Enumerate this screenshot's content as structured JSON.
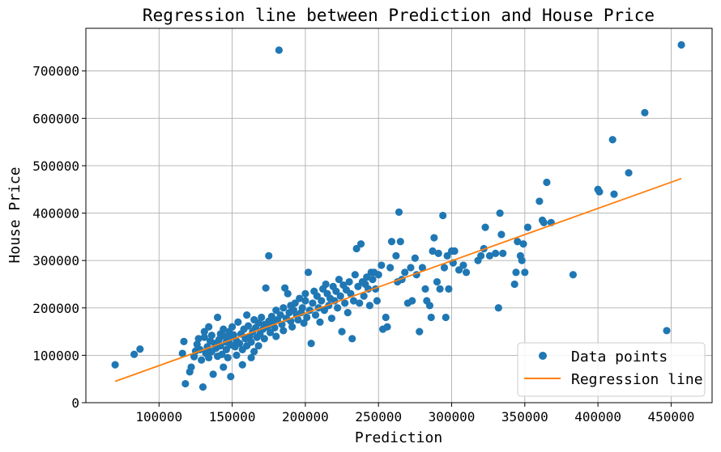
{
  "chart_data": {
    "type": "scatter",
    "title": "Regression line between Prediction and House Price",
    "xlabel": "Prediction",
    "ylabel": "House Price",
    "xlim": [
      50000,
      478000
    ],
    "ylim": [
      0,
      790000
    ],
    "xticks": [
      100000,
      150000,
      200000,
      250000,
      300000,
      350000,
      400000,
      450000
    ],
    "yticks": [
      0,
      100000,
      200000,
      300000,
      400000,
      500000,
      600000,
      700000
    ],
    "grid": true,
    "legend": {
      "placement": "lower-right",
      "entries": [
        "Data points",
        "Regression line"
      ]
    },
    "series": [
      {
        "name": "Data points",
        "kind": "scatter",
        "color": "#1f77b4",
        "points": [
          [
            70000,
            80000
          ],
          [
            83000,
            102000
          ],
          [
            87000,
            113000
          ],
          [
            116000,
            104000
          ],
          [
            117000,
            129000
          ],
          [
            118000,
            40000
          ],
          [
            121000,
            65000
          ],
          [
            122000,
            75000
          ],
          [
            124000,
            97000
          ],
          [
            125000,
            109000
          ],
          [
            126000,
            123000
          ],
          [
            127000,
            135000
          ],
          [
            128000,
            112000
          ],
          [
            129000,
            90000
          ],
          [
            130000,
            33000
          ],
          [
            131000,
            138000
          ],
          [
            131000,
            150000
          ],
          [
            132000,
            104000
          ],
          [
            133000,
            118000
          ],
          [
            134000,
            160000
          ],
          [
            134000,
            95000
          ],
          [
            135000,
            130000
          ],
          [
            136000,
            142000
          ],
          [
            136000,
            108000
          ],
          [
            137000,
            60000
          ],
          [
            138000,
            125000
          ],
          [
            139000,
            115000
          ],
          [
            140000,
            98000
          ],
          [
            140000,
            180000
          ],
          [
            141000,
            133000
          ],
          [
            142000,
            145000
          ],
          [
            142000,
            120000
          ],
          [
            143000,
            102000
          ],
          [
            144000,
            155000
          ],
          [
            144000,
            75000
          ],
          [
            145000,
            140000
          ],
          [
            146000,
            128000
          ],
          [
            146000,
            112000
          ],
          [
            147000,
            95000
          ],
          [
            148000,
            150000
          ],
          [
            148000,
            135000
          ],
          [
            149000,
            122000
          ],
          [
            149000,
            55000
          ],
          [
            150000,
            160000
          ],
          [
            151000,
            143000
          ],
          [
            152000,
            118000
          ],
          [
            153000,
            130000
          ],
          [
            153000,
            100000
          ],
          [
            154000,
            170000
          ],
          [
            155000,
            125000
          ],
          [
            156000,
            145000
          ],
          [
            157000,
            112000
          ],
          [
            157000,
            80000
          ],
          [
            158000,
            155000
          ],
          [
            159000,
            135000
          ],
          [
            160000,
            120000
          ],
          [
            160000,
            185000
          ],
          [
            161000,
            162000
          ],
          [
            162000,
            140000
          ],
          [
            163000,
            128000
          ],
          [
            163000,
            95000
          ],
          [
            164000,
            150000
          ],
          [
            165000,
            175000
          ],
          [
            165000,
            108000
          ],
          [
            166000,
            158000
          ],
          [
            167000,
            138000
          ],
          [
            168000,
            168000
          ],
          [
            168000,
            120000
          ],
          [
            169000,
            145000
          ],
          [
            170000,
            180000
          ],
          [
            171000,
            155000
          ],
          [
            172000,
            165000
          ],
          [
            172000,
            135000
          ],
          [
            173000,
            242000
          ],
          [
            174000,
            160000
          ],
          [
            175000,
            172000
          ],
          [
            175000,
            310000
          ],
          [
            176000,
            148000
          ],
          [
            177000,
            182000
          ],
          [
            178000,
            168000
          ],
          [
            179000,
            158000
          ],
          [
            180000,
            195000
          ],
          [
            180000,
            140000
          ],
          [
            181000,
            175000
          ],
          [
            182000,
            744000
          ],
          [
            183000,
            185000
          ],
          [
            184000,
            165000
          ],
          [
            185000,
            200000
          ],
          [
            185000,
            152000
          ],
          [
            186000,
            242000
          ],
          [
            187000,
            178000
          ],
          [
            188000,
            230000
          ],
          [
            189000,
            190000
          ],
          [
            190000,
            172000
          ],
          [
            190000,
            205000
          ],
          [
            191000,
            160000
          ],
          [
            192000,
            195000
          ],
          [
            193000,
            210000
          ],
          [
            194000,
            185000
          ],
          [
            195000,
            175000
          ],
          [
            196000,
            220000
          ],
          [
            197000,
            190000
          ],
          [
            198000,
            200000
          ],
          [
            199000,
            168000
          ],
          [
            200000,
            215000
          ],
          [
            200000,
            230000
          ],
          [
            201000,
            180000
          ],
          [
            202000,
            275000
          ],
          [
            203000,
            195000
          ],
          [
            204000,
            125000
          ],
          [
            205000,
            210000
          ],
          [
            206000,
            235000
          ],
          [
            207000,
            185000
          ],
          [
            208000,
            225000
          ],
          [
            209000,
            200000
          ],
          [
            210000,
            170000
          ],
          [
            211000,
            215000
          ],
          [
            212000,
            240000
          ],
          [
            213000,
            195000
          ],
          [
            214000,
            250000
          ],
          [
            215000,
            230000
          ],
          [
            216000,
            205000
          ],
          [
            217000,
            220000
          ],
          [
            218000,
            178000
          ],
          [
            219000,
            245000
          ],
          [
            220000,
            215000
          ],
          [
            221000,
            235000
          ],
          [
            222000,
            200000
          ],
          [
            223000,
            260000
          ],
          [
            224000,
            225000
          ],
          [
            225000,
            150000
          ],
          [
            226000,
            248000
          ],
          [
            227000,
            210000
          ],
          [
            228000,
            238000
          ],
          [
            229000,
            190000
          ],
          [
            230000,
            255000
          ],
          [
            231000,
            230000
          ],
          [
            232000,
            135000
          ],
          [
            233000,
            215000
          ],
          [
            234000,
            270000
          ],
          [
            235000,
            325000
          ],
          [
            236000,
            245000
          ],
          [
            237000,
            210000
          ],
          [
            238000,
            335000
          ],
          [
            239000,
            255000
          ],
          [
            240000,
            225000
          ],
          [
            241000,
            250000
          ],
          [
            242000,
            265000
          ],
          [
            243000,
            240000
          ],
          [
            244000,
            205000
          ],
          [
            245000,
            275000
          ],
          [
            246000,
            260000
          ],
          [
            247000,
            275000
          ],
          [
            248000,
            240000
          ],
          [
            249000,
            215000
          ],
          [
            250000,
            270000
          ],
          [
            252000,
            290000
          ],
          [
            253000,
            155000
          ],
          [
            255000,
            180000
          ],
          [
            256000,
            160000
          ],
          [
            258000,
            285000
          ],
          [
            259000,
            340000
          ],
          [
            262000,
            310000
          ],
          [
            263000,
            255000
          ],
          [
            264000,
            402000
          ],
          [
            265000,
            340000
          ],
          [
            266000,
            260000
          ],
          [
            268000,
            275000
          ],
          [
            270000,
            210000
          ],
          [
            272000,
            285000
          ],
          [
            273000,
            215000
          ],
          [
            275000,
            305000
          ],
          [
            276000,
            270000
          ],
          [
            278000,
            150000
          ],
          [
            280000,
            285000
          ],
          [
            282000,
            240000
          ],
          [
            283000,
            215000
          ],
          [
            285000,
            205000
          ],
          [
            286000,
            180000
          ],
          [
            287000,
            320000
          ],
          [
            288000,
            348000
          ],
          [
            290000,
            255000
          ],
          [
            291000,
            315000
          ],
          [
            292000,
            240000
          ],
          [
            294000,
            395000
          ],
          [
            295000,
            285000
          ],
          [
            296000,
            180000
          ],
          [
            297000,
            310000
          ],
          [
            298000,
            240000
          ],
          [
            300000,
            320000
          ],
          [
            301000,
            295000
          ],
          [
            302000,
            320000
          ],
          [
            305000,
            280000
          ],
          [
            308000,
            290000
          ],
          [
            310000,
            275000
          ],
          [
            318000,
            300000
          ],
          [
            320000,
            310000
          ],
          [
            322000,
            325000
          ],
          [
            323000,
            370000
          ],
          [
            326000,
            310000
          ],
          [
            330000,
            315000
          ],
          [
            332000,
            200000
          ],
          [
            333000,
            400000
          ],
          [
            334000,
            355000
          ],
          [
            335000,
            315000
          ],
          [
            343000,
            250000
          ],
          [
            344000,
            275000
          ],
          [
            345000,
            340000
          ],
          [
            347000,
            310000
          ],
          [
            348000,
            300000
          ],
          [
            349000,
            335000
          ],
          [
            350000,
            275000
          ],
          [
            352000,
            370000
          ],
          [
            360000,
            425000
          ],
          [
            362000,
            385000
          ],
          [
            363000,
            380000
          ],
          [
            365000,
            465000
          ],
          [
            368000,
            380000
          ],
          [
            383000,
            270000
          ],
          [
            400000,
            450000
          ],
          [
            401000,
            445000
          ],
          [
            410000,
            555000
          ],
          [
            411000,
            440000
          ],
          [
            421000,
            485000
          ],
          [
            432000,
            612000
          ],
          [
            447000,
            152000
          ],
          [
            457000,
            755000
          ]
        ]
      },
      {
        "name": "Regression line",
        "kind": "line",
        "color": "#ff7f0e",
        "x": [
          70000,
          457000
        ],
        "y": [
          45000,
          473000
        ]
      }
    ]
  }
}
